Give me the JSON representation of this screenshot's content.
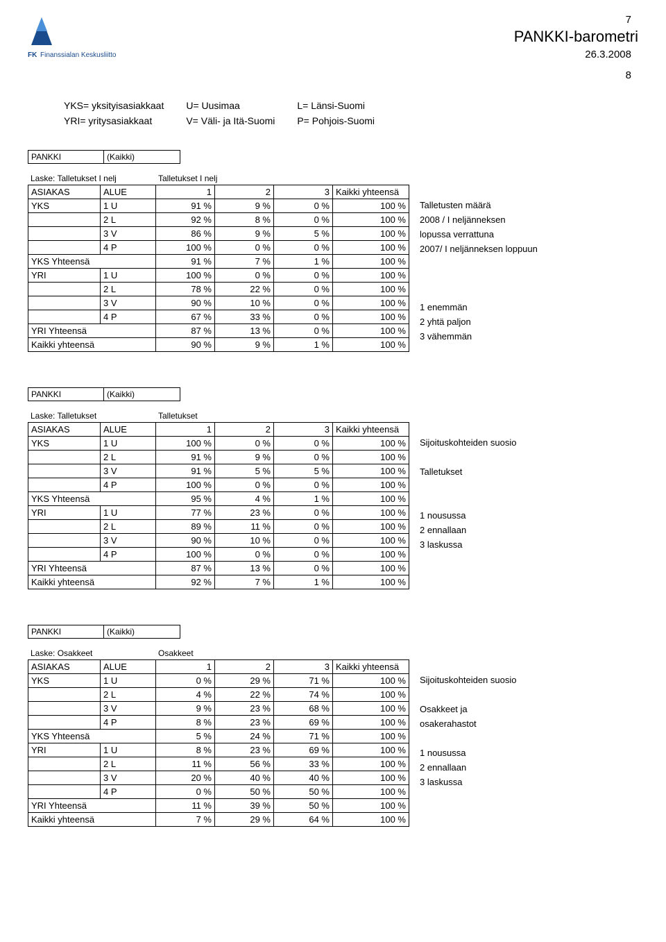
{
  "header": {
    "page_top": "7",
    "brand": "PANKKI-barometri",
    "date": "26.3.2008",
    "page_bottom": "8",
    "fk_label": "Finanssialan Keskusliitto"
  },
  "legend": {
    "rows": [
      [
        "YKS= yksityisasiakkaat",
        "U= Uusimaa",
        "L= Länsi-Suomi"
      ],
      [
        "YRI= yritysasiakkaat",
        "V= Väli- ja Itä-Suomi",
        "P= Pohjois-Suomi"
      ]
    ]
  },
  "colors": {
    "text": "#000000",
    "bg": "#ffffff",
    "border": "#000000",
    "logo_blue": "#1a4b8c",
    "logo_accent": "#4a90d9"
  },
  "tables": [
    {
      "pankki_label": "PANKKI",
      "kaikki_label": "(Kaikki)",
      "laske_label": "Laske: Talletukset I nelj",
      "count_label": "Talletukset I nelj",
      "headers": [
        "ASIAKAS",
        "ALUE",
        "1",
        "2",
        "3",
        "Kaikki yhteensä"
      ],
      "rows": [
        {
          "c0": "YKS",
          "c1": "1 U",
          "v": [
            "91 %",
            "9 %",
            "0 %",
            "100 %"
          ],
          "note": "Talletusten määrä"
        },
        {
          "c0": "",
          "c1": "2 L",
          "v": [
            "92 %",
            "8 %",
            "0 %",
            "100 %"
          ],
          "note": "2008 / I neljänneksen"
        },
        {
          "c0": "",
          "c1": "3 V",
          "v": [
            "86 %",
            "9 %",
            "5 %",
            "100 %"
          ],
          "note": "lopussa verrattuna"
        },
        {
          "c0": "",
          "c1": "4 P",
          "v": [
            "100 %",
            "0 %",
            "0 %",
            "100 %"
          ],
          "note": "2007/ I neljänneksen loppuun"
        },
        {
          "c0": "YKS Yhteensä",
          "c1": "",
          "v": [
            "91 %",
            "7 %",
            "1 %",
            "100 %"
          ],
          "note": "",
          "span": true
        },
        {
          "c0": "YRI",
          "c1": "1 U",
          "v": [
            "100 %",
            "0 %",
            "0 %",
            "100 %"
          ],
          "note": ""
        },
        {
          "c0": "",
          "c1": "2 L",
          "v": [
            "78 %",
            "22 %",
            "0 %",
            "100 %"
          ],
          "note": ""
        },
        {
          "c0": "",
          "c1": "3 V",
          "v": [
            "90 %",
            "10 %",
            "0 %",
            "100 %"
          ],
          "note": "1 enemmän"
        },
        {
          "c0": "",
          "c1": "4 P",
          "v": [
            "67 %",
            "33 %",
            "0 %",
            "100 %"
          ],
          "note": "2 yhtä paljon"
        },
        {
          "c0": "YRI Yhteensä",
          "c1": "",
          "v": [
            "87 %",
            "13 %",
            "0 %",
            "100 %"
          ],
          "note": "3 vähemmän",
          "span": true
        },
        {
          "c0": "Kaikki yhteensä",
          "c1": "",
          "v": [
            "90 %",
            "9 %",
            "1 %",
            "100 %"
          ],
          "note": "",
          "span": true
        }
      ]
    },
    {
      "pankki_label": "PANKKI",
      "kaikki_label": "(Kaikki)",
      "laske_label": "Laske: Talletukset",
      "count_label": "Talletukset",
      "headers": [
        "ASIAKAS",
        "ALUE",
        "1",
        "2",
        "3",
        "Kaikki yhteensä"
      ],
      "rows": [
        {
          "c0": "YKS",
          "c1": "1 U",
          "v": [
            "100 %",
            "0 %",
            "0 %",
            "100 %"
          ],
          "note": "Sijoituskohteiden suosio"
        },
        {
          "c0": "",
          "c1": "2 L",
          "v": [
            "91 %",
            "9 %",
            "0 %",
            "100 %"
          ],
          "note": ""
        },
        {
          "c0": "",
          "c1": "3 V",
          "v": [
            "91 %",
            "5 %",
            "5 %",
            "100 %"
          ],
          "note": "Talletukset"
        },
        {
          "c0": "",
          "c1": "4 P",
          "v": [
            "100 %",
            "0 %",
            "0 %",
            "100 %"
          ],
          "note": ""
        },
        {
          "c0": "YKS Yhteensä",
          "c1": "",
          "v": [
            "95 %",
            "4 %",
            "1 %",
            "100 %"
          ],
          "note": "",
          "span": true
        },
        {
          "c0": "YRI",
          "c1": "1 U",
          "v": [
            "77 %",
            "23 %",
            "0 %",
            "100 %"
          ],
          "note": "1 nousussa"
        },
        {
          "c0": "",
          "c1": "2 L",
          "v": [
            "89 %",
            "11 %",
            "0 %",
            "100 %"
          ],
          "note": "2 ennallaan"
        },
        {
          "c0": "",
          "c1": "3 V",
          "v": [
            "90 %",
            "10 %",
            "0 %",
            "100 %"
          ],
          "note": "3 laskussa"
        },
        {
          "c0": "",
          "c1": "4 P",
          "v": [
            "100 %",
            "0 %",
            "0 %",
            "100 %"
          ],
          "note": ""
        },
        {
          "c0": "YRI Yhteensä",
          "c1": "",
          "v": [
            "87 %",
            "13 %",
            "0 %",
            "100 %"
          ],
          "note": "",
          "span": true
        },
        {
          "c0": "Kaikki yhteensä",
          "c1": "",
          "v": [
            "92 %",
            "7 %",
            "1 %",
            "100 %"
          ],
          "note": "",
          "span": true
        }
      ]
    },
    {
      "pankki_label": "PANKKI",
      "kaikki_label": "(Kaikki)",
      "laske_label": "Laske: Osakkeet",
      "count_label": "Osakkeet",
      "headers": [
        "ASIAKAS",
        "ALUE",
        "1",
        "2",
        "3",
        "Kaikki yhteensä"
      ],
      "rows": [
        {
          "c0": "YKS",
          "c1": "1 U",
          "v": [
            "0 %",
            "29 %",
            "71 %",
            "100 %"
          ],
          "note": "Sijoituskohteiden suosio"
        },
        {
          "c0": "",
          "c1": "2 L",
          "v": [
            "4 %",
            "22 %",
            "74 %",
            "100 %"
          ],
          "note": ""
        },
        {
          "c0": "",
          "c1": "3 V",
          "v": [
            "9 %",
            "23 %",
            "68 %",
            "100 %"
          ],
          "note": "Osakkeet ja"
        },
        {
          "c0": "",
          "c1": "4 P",
          "v": [
            "8 %",
            "23 %",
            "69 %",
            "100 %"
          ],
          "note": "osakerahastot"
        },
        {
          "c0": "YKS Yhteensä",
          "c1": "",
          "v": [
            "5 %",
            "24 %",
            "71 %",
            "100 %"
          ],
          "note": "",
          "span": true
        },
        {
          "c0": "YRI",
          "c1": "1 U",
          "v": [
            "8 %",
            "23 %",
            "69 %",
            "100 %"
          ],
          "note": "1 nousussa"
        },
        {
          "c0": "",
          "c1": "2 L",
          "v": [
            "11 %",
            "56 %",
            "33 %",
            "100 %"
          ],
          "note": "2 ennallaan"
        },
        {
          "c0": "",
          "c1": "3 V",
          "v": [
            "20 %",
            "40 %",
            "40 %",
            "100 %"
          ],
          "note": "3 laskussa"
        },
        {
          "c0": "",
          "c1": "4 P",
          "v": [
            "0 %",
            "50 %",
            "50 %",
            "100 %"
          ],
          "note": ""
        },
        {
          "c0": "YRI Yhteensä",
          "c1": "",
          "v": [
            "11 %",
            "39 %",
            "50 %",
            "100 %"
          ],
          "note": "",
          "span": true
        },
        {
          "c0": "Kaikki yhteensä",
          "c1": "",
          "v": [
            "7 %",
            "29 %",
            "64 %",
            "100 %"
          ],
          "note": "",
          "span": true
        }
      ]
    }
  ]
}
